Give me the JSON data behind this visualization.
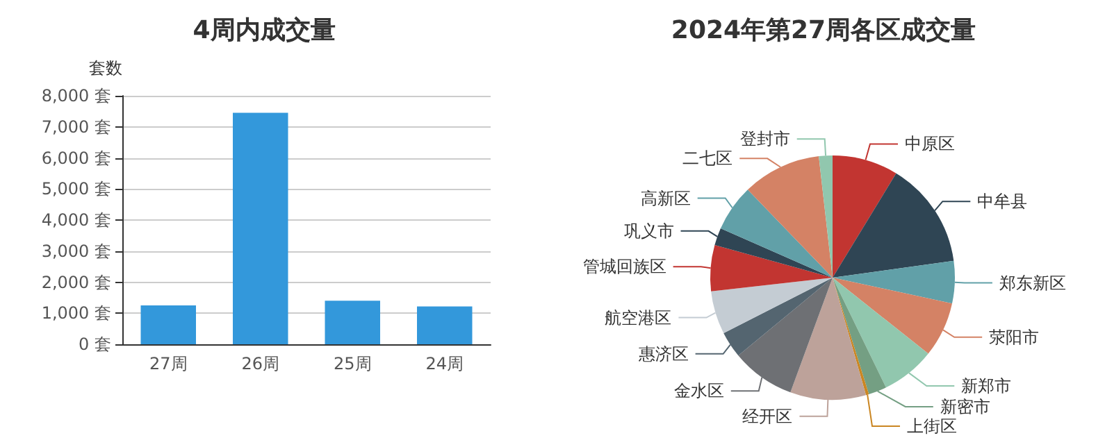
{
  "chart_data": [
    {
      "type": "bar",
      "title": "4周内成交量",
      "ylabel": "套数",
      "categories": [
        "27周",
        "26周",
        "25周",
        "24周"
      ],
      "values": [
        1250,
        7450,
        1400,
        1220
      ],
      "color": "#3398db",
      "ylim": [
        0,
        8000
      ],
      "yticks": [
        {
          "value": 0,
          "label": "0 套"
        },
        {
          "value": 1000,
          "label": "1,000 套"
        },
        {
          "value": 2000,
          "label": "2,000 套"
        },
        {
          "value": 3000,
          "label": "3,000 套"
        },
        {
          "value": 4000,
          "label": "4,000 套"
        },
        {
          "value": 5000,
          "label": "5,000 套"
        },
        {
          "value": 6000,
          "label": "6,000 套"
        },
        {
          "value": 7000,
          "label": "7,000 套"
        },
        {
          "value": 8000,
          "label": "8,000 套"
        }
      ],
      "grid": "y",
      "legend": false
    },
    {
      "type": "pie",
      "title": "2024年第27周各区成交量",
      "categories": [
        "中原区",
        "中牟县",
        "郑东新区",
        "荥阳市",
        "新郑市",
        "新密市",
        "上街区",
        "经开区",
        "金水区",
        "惠济区",
        "航空港区",
        "管城回族区",
        "巩义市",
        "高新区",
        "二七区",
        "登封市"
      ],
      "values": [
        8.7,
        14.1,
        5.6,
        7.3,
        7.1,
        2.4,
        0.4,
        10,
        8.4,
        3.5,
        5.7,
        6.1,
        2.3,
        6.2,
        10.4,
        1.8
      ],
      "colors": [
        "#c23531",
        "#2f4554",
        "#61a0a8",
        "#d48265",
        "#91c7ae",
        "#749f83",
        "#ca8622",
        "#bda29a",
        "#6e7074",
        "#546570",
        "#c4ccd3",
        "#c23531",
        "#2f4554",
        "#61a0a8",
        "#d48265",
        "#91c7ae"
      ],
      "legend": false
    }
  ]
}
